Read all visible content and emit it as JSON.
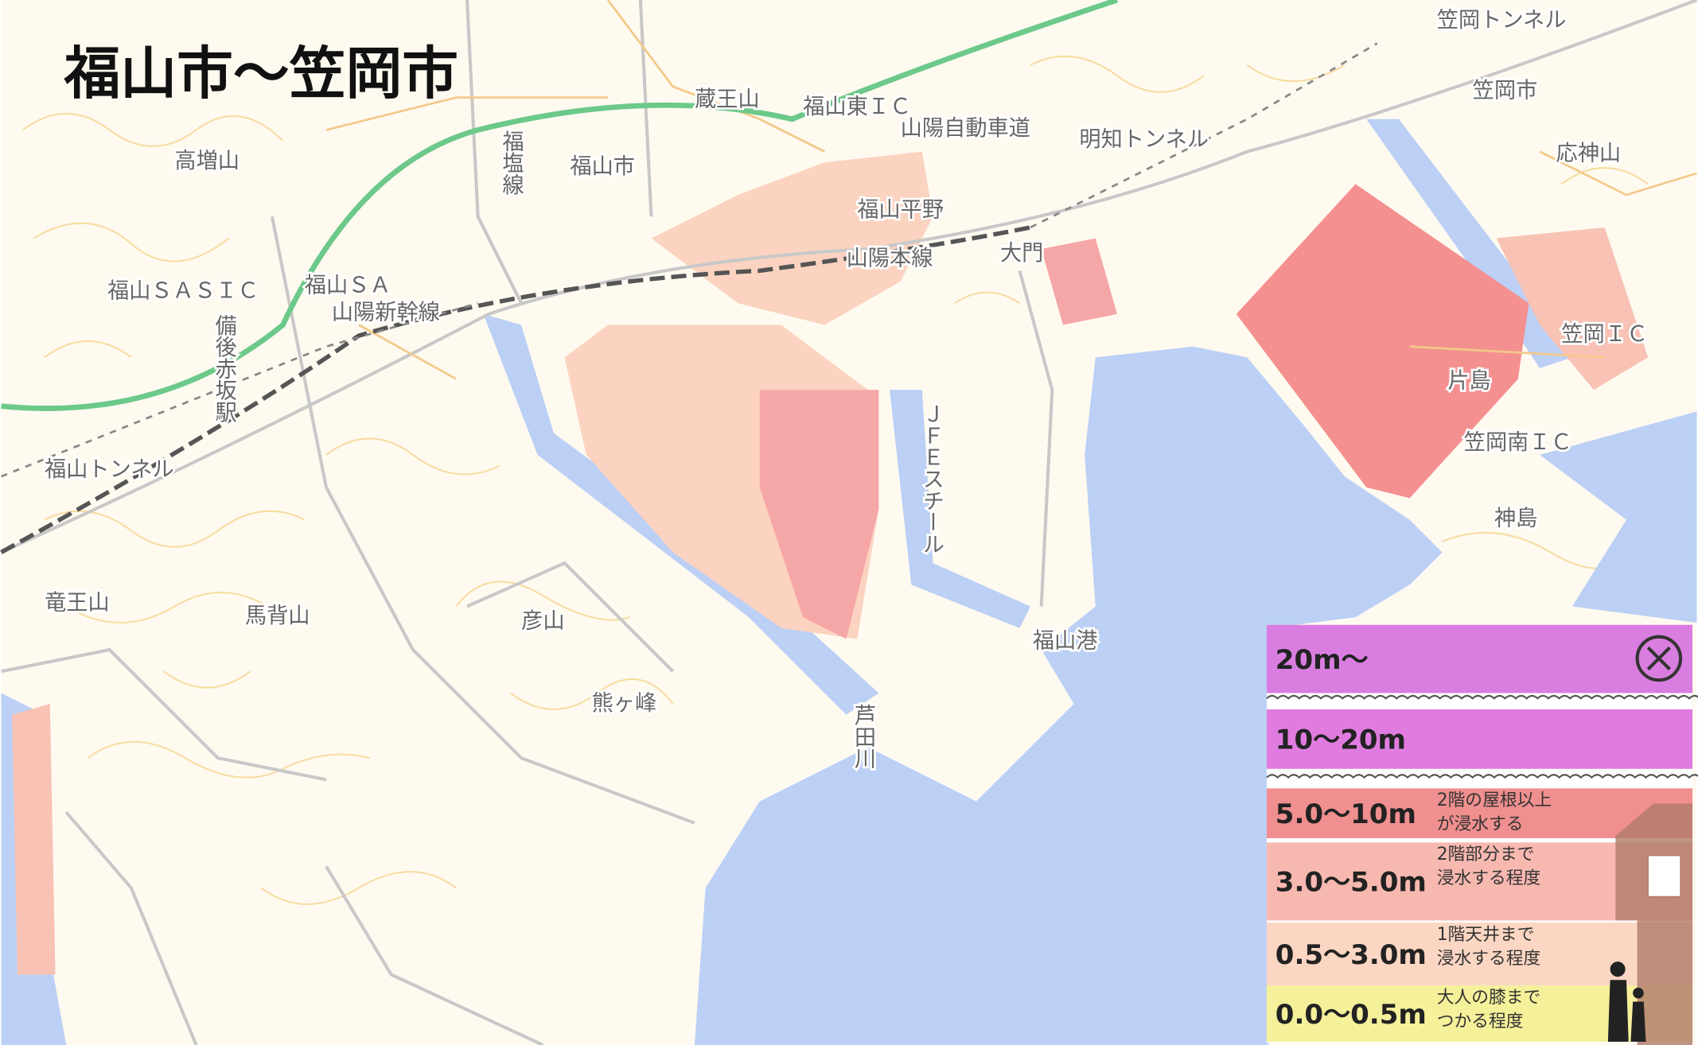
{
  "title": "福山市～笠岡市",
  "map_labels": [
    "福山市",
    "笠岡市",
    "福山平野",
    "大門",
    "高増山",
    "福山ＳＡ",
    "福山ＳＡＳＩＣ",
    "山陽新幹線",
    "福塩線",
    "山陽自動車道",
    "明知トンネル",
    "笠岡トンネル",
    "応神山",
    "笠岡ＩＣ",
    "片島",
    "神島",
    "ＪＦＥスチール",
    "福山港",
    "芦田川",
    "彦山",
    "馬背山",
    "竜王山",
    "熊ヶ峰",
    "福山トンネル",
    "福山東ＩＣ",
    "備後赤坂駅",
    "蔵王山",
    "山陽本線",
    "笠岡南ＩＣ"
  ],
  "legend": {
    "items": [
      {
        "range": "20m～"
      },
      {
        "range": "10～20m"
      },
      {
        "range": "5.0～10m",
        "note": [
          "2階の屋根以上",
          "が浸水する"
        ]
      },
      {
        "range": "3.0～5.0m",
        "note": [
          "2階部分まで",
          "浸水する程度"
        ]
      },
      {
        "range": "0.5～3.0m",
        "note": [
          "1階天井まで",
          "浸水する程度"
        ]
      },
      {
        "range": "0.0～0.5m",
        "note": [
          "大人の膝まで",
          "つかる程度"
        ]
      }
    ]
  }
}
